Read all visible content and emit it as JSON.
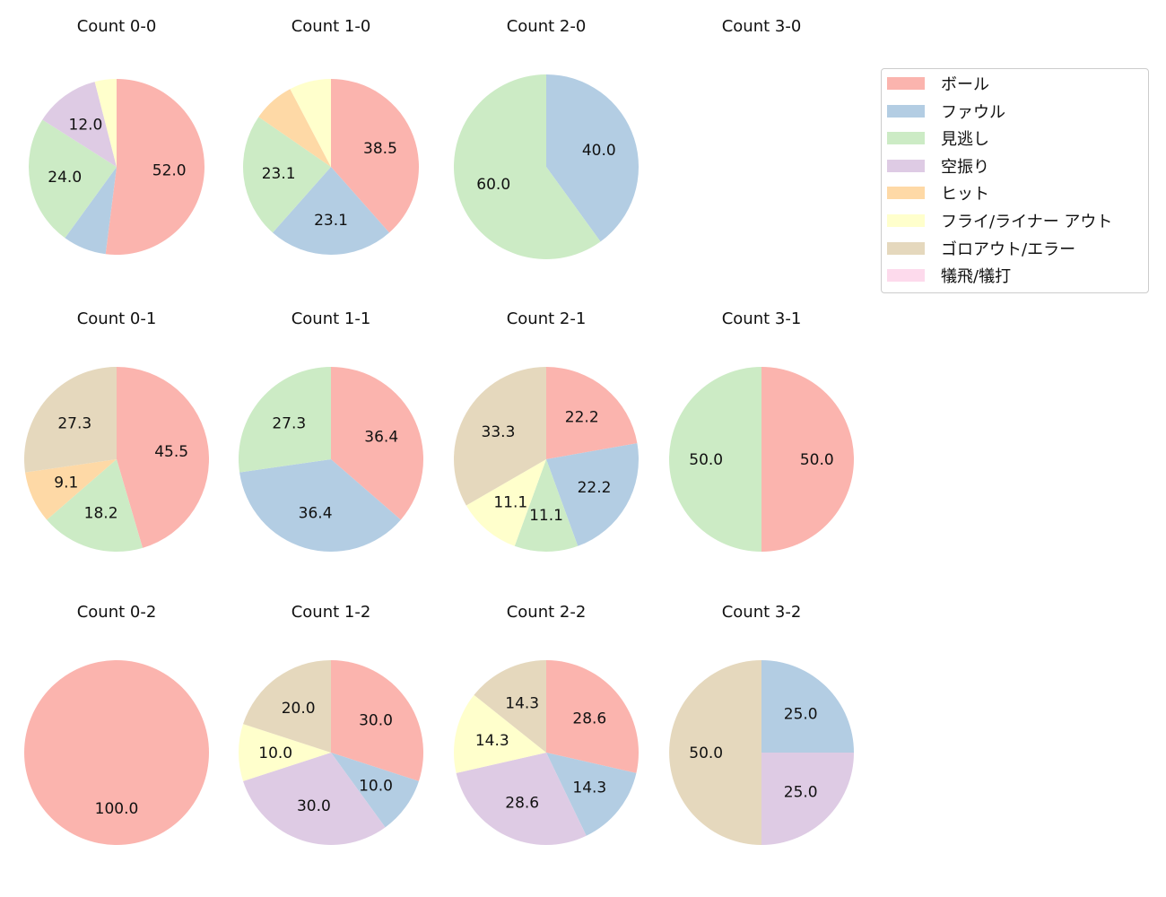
{
  "chart_data": {
    "type": "pie",
    "legend_position": "top-right",
    "colors": [
      "#fbb4ae",
      "#b3cde3",
      "#ccebc5",
      "#decbe4",
      "#fed9a6",
      "#ffffcc",
      "#e5d8bd",
      "#fddaec"
    ],
    "categories": [
      "ボール",
      "ファウル",
      "見逃し",
      "空振り",
      "ヒット",
      "フライ/ライナー アウト",
      "ゴロアウト/エラー",
      "犠飛/犠打"
    ],
    "pies": [
      {
        "title": "Count 0-0",
        "values": [
          52.0,
          8.0,
          24.0,
          12.0,
          0,
          4.0,
          0,
          0
        ]
      },
      {
        "title": "Count 1-0",
        "values": [
          38.5,
          23.1,
          23.1,
          0,
          7.7,
          7.7,
          0,
          0
        ]
      },
      {
        "title": "Count 2-0",
        "values": [
          0,
          40.0,
          60.0,
          0,
          0,
          0,
          0,
          0
        ]
      },
      {
        "title": "Count 3-0",
        "values": [
          0,
          0,
          0,
          0,
          0,
          0,
          0,
          0
        ]
      },
      {
        "title": "Count 0-1",
        "values": [
          45.5,
          0,
          18.2,
          0,
          9.1,
          0,
          27.3,
          0
        ]
      },
      {
        "title": "Count 1-1",
        "values": [
          36.4,
          36.4,
          27.3,
          0,
          0,
          0,
          0,
          0
        ]
      },
      {
        "title": "Count 2-1",
        "values": [
          22.2,
          22.2,
          11.1,
          0,
          0,
          11.1,
          33.3,
          0
        ]
      },
      {
        "title": "Count 3-1",
        "values": [
          50.0,
          0,
          50.0,
          0,
          0,
          0,
          0,
          0
        ]
      },
      {
        "title": "Count 0-2",
        "values": [
          100.0,
          0,
          0,
          0,
          0,
          0,
          0,
          0
        ]
      },
      {
        "title": "Count 1-2",
        "values": [
          30.0,
          10.0,
          0,
          30.0,
          0,
          10.0,
          20.0,
          0
        ]
      },
      {
        "title": "Count 2-2",
        "values": [
          28.6,
          14.3,
          0,
          28.6,
          0,
          14.3,
          14.3,
          0
        ]
      },
      {
        "title": "Count 3-2",
        "values": [
          0,
          25.0,
          0,
          25.0,
          0,
          0,
          50.0,
          0
        ]
      }
    ]
  }
}
